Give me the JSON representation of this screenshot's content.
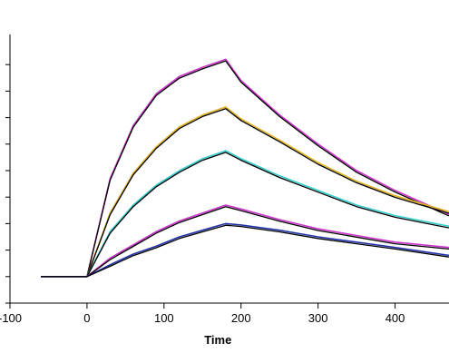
{
  "chart_data": {
    "type": "line",
    "xlabel": "Time",
    "ylabel": "",
    "xlim": [
      -100,
      470
    ],
    "ylim": [
      0,
      100
    ],
    "x_ticks": [
      -100,
      0,
      100,
      200,
      300,
      400
    ],
    "y_ticks": [
      0,
      10,
      20,
      30,
      40,
      50,
      60,
      70,
      80,
      90
    ],
    "association_end": 180,
    "series": [
      {
        "color": "#cc33cc",
        "fit_color": "#000000",
        "points": [
          [
            -60,
            10
          ],
          [
            0,
            10
          ],
          [
            30,
            47
          ],
          [
            60,
            67
          ],
          [
            90,
            79
          ],
          [
            120,
            85.5
          ],
          [
            150,
            89
          ],
          [
            180,
            92
          ],
          [
            200,
            84
          ],
          [
            250,
            71
          ],
          [
            300,
            60
          ],
          [
            350,
            50
          ],
          [
            400,
            42.5
          ],
          [
            470,
            33.5
          ]
        ]
      },
      {
        "color": "#e0b020",
        "fit_color": "#000000",
        "points": [
          [
            -60,
            10
          ],
          [
            0,
            10
          ],
          [
            30,
            34
          ],
          [
            60,
            49
          ],
          [
            90,
            59
          ],
          [
            120,
            66.5
          ],
          [
            150,
            71
          ],
          [
            180,
            74
          ],
          [
            200,
            69.5
          ],
          [
            250,
            61.5
          ],
          [
            300,
            53
          ],
          [
            350,
            46
          ],
          [
            400,
            40.5
          ],
          [
            470,
            34.5
          ]
        ]
      },
      {
        "color": "#33cccc",
        "fit_color": "#000000",
        "points": [
          [
            -60,
            10
          ],
          [
            0,
            10
          ],
          [
            30,
            27
          ],
          [
            60,
            37
          ],
          [
            90,
            44.5
          ],
          [
            120,
            50
          ],
          [
            150,
            54.5
          ],
          [
            180,
            57.5
          ],
          [
            200,
            54.5
          ],
          [
            250,
            48
          ],
          [
            300,
            42.5
          ],
          [
            350,
            37
          ],
          [
            400,
            33
          ],
          [
            470,
            29
          ]
        ]
      },
      {
        "color": "#cc33cc",
        "fit_color": "#000000",
        "points": [
          [
            -60,
            10
          ],
          [
            0,
            10
          ],
          [
            30,
            17
          ],
          [
            60,
            22
          ],
          [
            90,
            27
          ],
          [
            120,
            31
          ],
          [
            150,
            34
          ],
          [
            180,
            37
          ],
          [
            200,
            35.5
          ],
          [
            250,
            31.5
          ],
          [
            300,
            28
          ],
          [
            350,
            25.5
          ],
          [
            400,
            23
          ],
          [
            470,
            21
          ]
        ]
      },
      {
        "color": "#2233aa",
        "fit_color": "#000000",
        "points": [
          [
            -60,
            10
          ],
          [
            0,
            10
          ],
          [
            30,
            14.5
          ],
          [
            60,
            18.5
          ],
          [
            90,
            21.5
          ],
          [
            120,
            25
          ],
          [
            150,
            27.5
          ],
          [
            180,
            30
          ],
          [
            200,
            29.5
          ],
          [
            250,
            27.5
          ],
          [
            300,
            25
          ],
          [
            350,
            23
          ],
          [
            400,
            21
          ],
          [
            470,
            18
          ]
        ]
      }
    ]
  }
}
